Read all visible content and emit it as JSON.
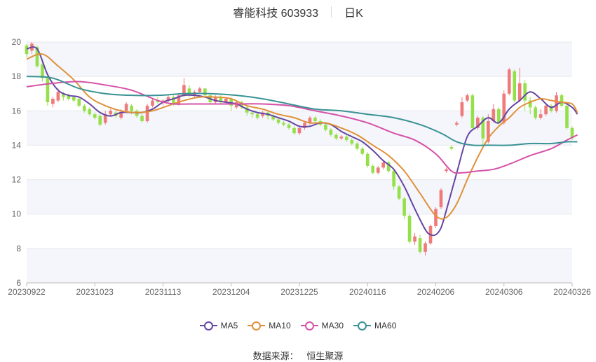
{
  "header": {
    "title": "睿能科技 603933",
    "period_label": "日K"
  },
  "source": {
    "label": "数据来源：",
    "value": "恒生聚源"
  },
  "colors": {
    "up": "#ef7a7a",
    "down": "#95e04a",
    "MA5": "#6546a3",
    "MA10": "#e0913a",
    "MA30": "#d552a8",
    "MA60": "#3a9294"
  },
  "chart_data": {
    "type": "candlestick",
    "title": "睿能科技 603933",
    "ylim": [
      6,
      20
    ],
    "y_ticks": [
      6,
      8,
      10,
      12,
      14,
      16,
      18,
      20
    ],
    "x_range": [
      "20230922",
      "20240326"
    ],
    "x_ticks": [
      "20230922",
      "20231023",
      "20231113",
      "20231204",
      "20231225",
      "20240116",
      "20240206",
      "20240306",
      "20240326"
    ],
    "grid": true,
    "legend_position": "bottom",
    "legend": [
      "MA5",
      "MA10",
      "MA30",
      "MA60"
    ],
    "candles": {
      "fields": [
        "open",
        "close",
        "high",
        "low"
      ],
      "values": [
        [
          19.8,
          19.3,
          19.9,
          19.1
        ],
        [
          19.5,
          19.9,
          20.0,
          19.3
        ],
        [
          19.7,
          18.6,
          19.8,
          18.5
        ],
        [
          18.7,
          17.9,
          19.0,
          17.7
        ],
        [
          17.9,
          16.5,
          18.1,
          16.3
        ],
        [
          16.4,
          16.7,
          16.8,
          16.2
        ],
        [
          16.6,
          17.1,
          17.3,
          16.5
        ],
        [
          17.0,
          16.8,
          17.1,
          16.6
        ],
        [
          16.9,
          16.7,
          17.0,
          16.6
        ],
        [
          16.8,
          16.6,
          16.9,
          16.5
        ],
        [
          16.7,
          16.3,
          16.8,
          16.2
        ],
        [
          16.3,
          16.0,
          16.4,
          15.9
        ],
        [
          16.1,
          15.8,
          16.2,
          15.7
        ],
        [
          15.8,
          15.6,
          15.9,
          15.5
        ],
        [
          15.7,
          15.2,
          15.8,
          15.1
        ],
        [
          15.3,
          15.8,
          16.0,
          15.2
        ],
        [
          15.8,
          16.0,
          16.1,
          15.7
        ],
        [
          15.9,
          15.7,
          16.0,
          15.6
        ],
        [
          15.6,
          15.9,
          16.1,
          15.5
        ],
        [
          16.0,
          16.4,
          16.5,
          15.9
        ],
        [
          16.3,
          16.0,
          16.4,
          15.8
        ],
        [
          16.0,
          15.7,
          16.1,
          15.6
        ],
        [
          15.7,
          15.4,
          15.8,
          15.3
        ],
        [
          15.4,
          16.3,
          16.4,
          15.3
        ],
        [
          16.3,
          16.6,
          16.7,
          16.2
        ],
        [
          16.6,
          16.5,
          16.8,
          16.4
        ],
        [
          16.5,
          16.6,
          16.7,
          16.3
        ],
        [
          16.6,
          16.8,
          16.9,
          16.5
        ],
        [
          16.8,
          16.4,
          16.9,
          16.3
        ],
        [
          16.4,
          16.9,
          17.0,
          16.3
        ],
        [
          16.9,
          17.5,
          17.9,
          16.8
        ],
        [
          17.3,
          16.9,
          17.5,
          16.8
        ],
        [
          16.9,
          17.1,
          17.2,
          16.8
        ],
        [
          17.1,
          17.3,
          17.4,
          17.0
        ],
        [
          17.3,
          16.9,
          17.3,
          16.8
        ],
        [
          16.9,
          16.5,
          17.0,
          16.4
        ],
        [
          16.5,
          16.8,
          16.9,
          16.4
        ],
        [
          16.8,
          16.5,
          16.9,
          16.4
        ],
        [
          16.5,
          16.7,
          16.8,
          16.4
        ],
        [
          16.7,
          16.3,
          16.8,
          16.0
        ],
        [
          16.2,
          16.5,
          16.6,
          16.1
        ],
        [
          16.5,
          16.2,
          16.6,
          16.1
        ],
        [
          16.2,
          15.9,
          16.3,
          15.7
        ],
        [
          15.9,
          15.8,
          16.0,
          15.6
        ],
        [
          15.8,
          15.6,
          15.9,
          15.5
        ],
        [
          15.7,
          15.9,
          16.0,
          15.6
        ],
        [
          15.9,
          15.7,
          16.0,
          15.5
        ],
        [
          15.7,
          15.5,
          15.8,
          15.4
        ],
        [
          15.5,
          15.3,
          15.6,
          15.2
        ],
        [
          15.3,
          15.2,
          15.4,
          15.1
        ],
        [
          15.2,
          15.0,
          15.3,
          14.9
        ],
        [
          15.0,
          14.7,
          15.1,
          14.6
        ],
        [
          14.7,
          15.0,
          15.1,
          14.6
        ],
        [
          15.0,
          15.3,
          15.4,
          14.9
        ],
        [
          15.3,
          15.6,
          15.7,
          15.2
        ],
        [
          15.6,
          15.4,
          15.7,
          15.3
        ],
        [
          15.4,
          15.2,
          15.5,
          15.1
        ],
        [
          15.2,
          14.9,
          15.3,
          14.8
        ],
        [
          14.9,
          14.6,
          15.0,
          14.5
        ],
        [
          14.6,
          14.4,
          14.7,
          14.3
        ],
        [
          14.4,
          14.5,
          14.6,
          14.3
        ],
        [
          14.5,
          14.3,
          14.6,
          14.2
        ],
        [
          14.3,
          14.1,
          14.4,
          14.0
        ],
        [
          14.1,
          13.8,
          14.2,
          13.7
        ],
        [
          13.8,
          13.5,
          13.9,
          13.4
        ],
        [
          13.5,
          12.8,
          13.6,
          12.7
        ],
        [
          12.8,
          12.4,
          12.9,
          12.3
        ],
        [
          12.4,
          12.7,
          12.8,
          12.3
        ],
        [
          12.7,
          13.0,
          13.1,
          12.6
        ],
        [
          13.0,
          12.5,
          13.1,
          12.4
        ],
        [
          12.5,
          11.6,
          12.6,
          11.4
        ],
        [
          11.6,
          10.9,
          11.7,
          10.8
        ],
        [
          10.9,
          9.9,
          11.0,
          9.7
        ],
        [
          9.9,
          8.4,
          10.0,
          8.3
        ],
        [
          8.4,
          8.7,
          8.9,
          8.2
        ],
        [
          8.6,
          7.8,
          8.8,
          7.7
        ],
        [
          7.8,
          8.3,
          8.4,
          7.6
        ],
        [
          8.3,
          9.3,
          9.4,
          8.2
        ],
        [
          9.3,
          10.3,
          10.4,
          9.2
        ],
        [
          10.4,
          11.4,
          11.5,
          10.3
        ],
        [
          12.5,
          12.6,
          12.7,
          12.4
        ],
        [
          13.9,
          13.8,
          14.0,
          13.7
        ],
        [
          15.2,
          15.3,
          15.4,
          15.1
        ],
        [
          15.7,
          16.5,
          16.8,
          15.6
        ],
        [
          16.6,
          16.9,
          17.0,
          16.5
        ],
        [
          16.9,
          15.0,
          17.0,
          14.9
        ],
        [
          15.0,
          15.6,
          15.7,
          14.9
        ],
        [
          15.6,
          14.4,
          15.7,
          13.9
        ],
        [
          14.2,
          15.4,
          15.8,
          14.1
        ],
        [
          15.4,
          16.1,
          16.4,
          15.3
        ],
        [
          16.1,
          15.3,
          16.2,
          15.2
        ],
        [
          15.3,
          17.0,
          17.2,
          15.2
        ],
        [
          17.0,
          18.4,
          18.5,
          16.9
        ],
        [
          18.3,
          16.6,
          18.4,
          16.5
        ],
        [
          16.6,
          17.6,
          18.5,
          16.5
        ],
        [
          17.6,
          16.6,
          17.8,
          16.0
        ],
        [
          16.6,
          16.2,
          16.8,
          15.8
        ],
        [
          16.2,
          15.6,
          16.3,
          15.5
        ],
        [
          15.6,
          15.8,
          16.1,
          15.5
        ],
        [
          15.8,
          16.3,
          16.4,
          15.7
        ],
        [
          16.3,
          16.0,
          16.4,
          15.9
        ],
        [
          16.0,
          16.9,
          17.1,
          15.9
        ],
        [
          16.9,
          16.3,
          17.0,
          16.2
        ],
        [
          16.3,
          15.0,
          16.4,
          14.9
        ],
        [
          15.0,
          14.4,
          15.1,
          14.3
        ]
      ]
    },
    "series": [
      {
        "name": "MA5",
        "points": [
          [
            0,
            19.6
          ],
          [
            2,
            19.6
          ],
          [
            4,
            18.1
          ],
          [
            6,
            17.2
          ],
          [
            8,
            16.9
          ],
          [
            10,
            16.8
          ],
          [
            12,
            16.4
          ],
          [
            14,
            15.9
          ],
          [
            16,
            15.7
          ],
          [
            18,
            15.9
          ],
          [
            20,
            15.9
          ],
          [
            22,
            15.9
          ],
          [
            24,
            16.1
          ],
          [
            26,
            16.5
          ],
          [
            28,
            16.7
          ],
          [
            30,
            16.9
          ],
          [
            32,
            16.9
          ],
          [
            34,
            16.8
          ],
          [
            36,
            16.6
          ],
          [
            38,
            16.5
          ],
          [
            40,
            16.4
          ],
          [
            42,
            16.1
          ],
          [
            44,
            15.9
          ],
          [
            46,
            15.8
          ],
          [
            48,
            15.6
          ],
          [
            50,
            15.4
          ],
          [
            52,
            15.1
          ],
          [
            54,
            15.1
          ],
          [
            56,
            15.3
          ],
          [
            58,
            15.2
          ],
          [
            60,
            14.8
          ],
          [
            62,
            14.5
          ],
          [
            64,
            14.2
          ],
          [
            66,
            13.7
          ],
          [
            68,
            13.1
          ],
          [
            70,
            12.6
          ],
          [
            72,
            11.6
          ],
          [
            74,
            10.3
          ],
          [
            76,
            9.1
          ],
          [
            77,
            8.8
          ],
          [
            78,
            8.8
          ],
          [
            79,
            9.2
          ],
          [
            80,
            10.2
          ],
          [
            82,
            12.4
          ],
          [
            84,
            14.5
          ],
          [
            86,
            15.1
          ],
          [
            88,
            15.6
          ],
          [
            90,
            15.3
          ],
          [
            92,
            16.1
          ],
          [
            94,
            16.6
          ],
          [
            96,
            17.1
          ],
          [
            98,
            16.7
          ],
          [
            100,
            16.2
          ],
          [
            102,
            16.5
          ],
          [
            104,
            16.2
          ],
          [
            105,
            15.8
          ]
        ]
      },
      {
        "name": "MA10",
        "points": [
          [
            0,
            19.0
          ],
          [
            3,
            19.3
          ],
          [
            6,
            18.6
          ],
          [
            9,
            17.8
          ],
          [
            12,
            16.8
          ],
          [
            15,
            16.3
          ],
          [
            18,
            16.0
          ],
          [
            21,
            15.9
          ],
          [
            24,
            16.0
          ],
          [
            27,
            16.3
          ],
          [
            30,
            16.6
          ],
          [
            33,
            16.8
          ],
          [
            36,
            16.8
          ],
          [
            39,
            16.7
          ],
          [
            42,
            16.3
          ],
          [
            45,
            16.1
          ],
          [
            48,
            15.8
          ],
          [
            51,
            15.6
          ],
          [
            54,
            15.3
          ],
          [
            57,
            15.3
          ],
          [
            60,
            15.0
          ],
          [
            63,
            14.6
          ],
          [
            66,
            14.0
          ],
          [
            69,
            13.4
          ],
          [
            72,
            12.5
          ],
          [
            75,
            11.2
          ],
          [
            78,
            9.9
          ],
          [
            80,
            9.8
          ],
          [
            82,
            10.6
          ],
          [
            84,
            12.0
          ],
          [
            86,
            13.3
          ],
          [
            88,
            14.4
          ],
          [
            90,
            15.1
          ],
          [
            92,
            15.6
          ],
          [
            94,
            16.2
          ],
          [
            96,
            16.5
          ],
          [
            98,
            16.7
          ],
          [
            100,
            16.6
          ],
          [
            102,
            16.5
          ],
          [
            104,
            16.4
          ],
          [
            105,
            15.9
          ]
        ]
      },
      {
        "name": "MA30",
        "points": [
          [
            0,
            17.4
          ],
          [
            5,
            17.6
          ],
          [
            10,
            17.7
          ],
          [
            15,
            17.5
          ],
          [
            20,
            17.2
          ],
          [
            25,
            16.6
          ],
          [
            28,
            16.4
          ],
          [
            31,
            16.4
          ],
          [
            35,
            16.4
          ],
          [
            40,
            16.4
          ],
          [
            45,
            16.4
          ],
          [
            50,
            16.3
          ],
          [
            55,
            16.0
          ],
          [
            60,
            15.7
          ],
          [
            65,
            15.3
          ],
          [
            70,
            14.7
          ],
          [
            74,
            14.3
          ],
          [
            78,
            13.5
          ],
          [
            81,
            12.5
          ],
          [
            83,
            12.4
          ],
          [
            86,
            12.5
          ],
          [
            89,
            12.6
          ],
          [
            92,
            12.9
          ],
          [
            96,
            13.4
          ],
          [
            100,
            13.8
          ],
          [
            103,
            14.3
          ],
          [
            105,
            14.6
          ]
        ]
      },
      {
        "name": "MA60",
        "points": [
          [
            0,
            18.0
          ],
          [
            5,
            17.9
          ],
          [
            10,
            17.3
          ],
          [
            15,
            17.0
          ],
          [
            20,
            16.9
          ],
          [
            25,
            16.9
          ],
          [
            30,
            17.0
          ],
          [
            35,
            17.0
          ],
          [
            40,
            16.9
          ],
          [
            45,
            16.7
          ],
          [
            50,
            16.4
          ],
          [
            55,
            16.1
          ],
          [
            60,
            16.0
          ],
          [
            65,
            15.8
          ],
          [
            70,
            15.6
          ],
          [
            75,
            15.2
          ],
          [
            79,
            14.7
          ],
          [
            82,
            14.2
          ],
          [
            85,
            14.0
          ],
          [
            88,
            14.0
          ],
          [
            92,
            14.0
          ],
          [
            96,
            14.1
          ],
          [
            100,
            14.1
          ],
          [
            103,
            14.2
          ],
          [
            105,
            14.2
          ]
        ]
      }
    ]
  }
}
